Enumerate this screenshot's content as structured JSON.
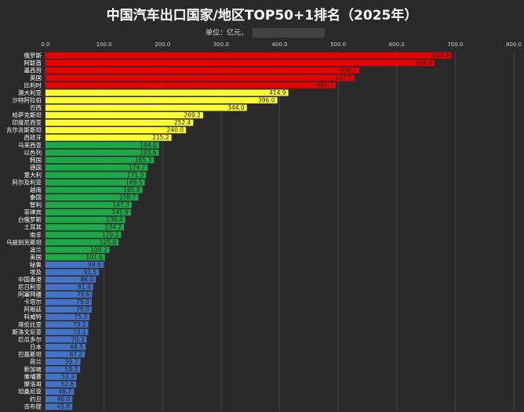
{
  "chart_data": {
    "type": "barh",
    "title": "中国汽车出口国家/地区TOP50+1排名（2025年）",
    "subtitle": "单位：亿元，",
    "categories": [
      "俄罗斯",
      "阿联酋",
      "墨西哥",
      "英国",
      "比利时",
      "澳大利亚",
      "沙特阿拉伯",
      "巴西",
      "哈萨克斯坦",
      "印度尼西亚",
      "吉尔吉斯斯坦",
      "西班牙",
      "马来西亚",
      "以色列",
      "韩国",
      "德国",
      "意大利",
      "阿尔及利亚",
      "越南",
      "泰国",
      "智利",
      "菲律宾",
      "白俄罗斯",
      "土耳其",
      "南非",
      "乌兹别克斯坦",
      "波兰",
      "美国",
      "秘鲁",
      "埃及",
      "中国香港",
      "尼日利亚",
      "阿塞拜疆",
      "卡塔尔",
      "阿根廷",
      "科威特",
      "哥伦比亚",
      "斯洛文尼亚",
      "厄瓜多尔",
      "日本",
      "巴基斯坦",
      "荷兰",
      "新加坡",
      "柬埔寨",
      "摩洛哥",
      "坦桑尼亚",
      "约旦",
      "吉布提"
    ],
    "values": [
      693.4,
      664.4,
      536.1,
      527.7,
      495.7,
      414.9,
      396.0,
      344.0,
      269.2,
      252.4,
      240.0,
      215.2,
      194.0,
      193.6,
      185.3,
      174.7,
      171.9,
      169.5,
      165.8,
      158.7,
      147.3,
      145.9,
      136.4,
      134.2,
      129.2,
      125.0,
      109.2,
      101.6,
      98.9,
      91.5,
      86.0,
      81.4,
      79.6,
      79.0,
      79.0,
      75.3,
      73.2,
      73.1,
      70.3,
      68.5,
      67.2,
      59.7,
      59.3,
      53.3,
      52.6,
      48.7,
      46.0,
      45.8
    ],
    "value_labels": [
      "693.4",
      "664.4",
      "536.1",
      "527.7",
      "495.7",
      "414.9",
      "396.0",
      "344.0",
      "269.2",
      "252.4",
      "240.0",
      "215.2",
      "194.0",
      "193.6",
      "185.3",
      "174.7",
      "171.9",
      "169.5",
      "165.8",
      "158.7",
      "147.3",
      "145.9",
      "136.4",
      "134.2",
      "129.2",
      "125.0",
      "109.2",
      "101.6",
      "98.9",
      "91.5",
      "86.0",
      "81.4",
      "79.6",
      "79.0",
      "79.0",
      "75.3",
      "73.2",
      "73.1",
      "70.3",
      "68.5",
      "67.2",
      "59.7",
      "59.3",
      "53.3",
      "52.6",
      "48.7",
      "46.0",
      "45.8"
    ],
    "colors": [
      "#e60000",
      "#e60000",
      "#e60000",
      "#e60000",
      "#e60000",
      "#ffff33",
      "#ffff33",
      "#ffff33",
      "#ffff33",
      "#ffff33",
      "#ffff33",
      "#ffff33",
      "#1fa84a",
      "#1fa84a",
      "#1fa84a",
      "#1fa84a",
      "#1fa84a",
      "#1fa84a",
      "#1fa84a",
      "#1fa84a",
      "#1fa84a",
      "#1fa84a",
      "#1fa84a",
      "#1fa84a",
      "#1fa84a",
      "#1fa84a",
      "#1fa84a",
      "#1fa84a",
      "#4472c4",
      "#4472c4",
      "#4472c4",
      "#4472c4",
      "#4472c4",
      "#4472c4",
      "#4472c4",
      "#4472c4",
      "#4472c4",
      "#4472c4",
      "#4472c4",
      "#4472c4",
      "#4472c4",
      "#4472c4",
      "#4472c4",
      "#4472c4",
      "#4472c4",
      "#4472c4",
      "#4472c4",
      "#4472c4"
    ],
    "xlim": [
      0,
      800
    ],
    "xticks": [
      {
        "value": 0,
        "label": "0.0"
      },
      {
        "value": 100,
        "label": "100.0"
      },
      {
        "value": 200,
        "label": "200.0"
      },
      {
        "value": 300,
        "label": "300.0"
      },
      {
        "value": 400,
        "label": "400.0"
      },
      {
        "value": 500,
        "label": "500.0"
      },
      {
        "value": 600,
        "label": "600.0"
      },
      {
        "value": 700,
        "label": "700.0"
      },
      {
        "value": 800,
        "label": "800.0"
      }
    ],
    "grid": true
  }
}
